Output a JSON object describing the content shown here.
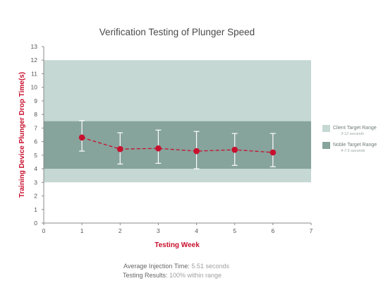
{
  "chart_data": {
    "type": "line",
    "title": "Verification Testing of Plunger Speed",
    "xlabel": "Testing Week",
    "ylabel": "Training Device Plunger Drop Time(s)",
    "xlim": [
      0,
      7
    ],
    "ylim": [
      0,
      13
    ],
    "x_ticks": [
      "0",
      "1",
      "2",
      "3",
      "4",
      "5",
      "6",
      "7"
    ],
    "y_ticks": [
      "0",
      "1",
      "2",
      "3",
      "4",
      "5",
      "6",
      "7",
      "8",
      "9",
      "10",
      "11",
      "12",
      "13"
    ],
    "grid": false,
    "legend_position": "right",
    "series": [
      {
        "x": [
          1,
          2,
          3,
          4,
          5,
          6
        ],
        "values": [
          6.3,
          5.45,
          5.5,
          5.3,
          5.4,
          5.2
        ],
        "error_low": [
          5.3,
          4.35,
          4.4,
          4.0,
          4.25,
          4.15
        ],
        "error_high": [
          7.55,
          6.65,
          6.85,
          6.75,
          6.6,
          6.6
        ],
        "color": "#c8102e"
      }
    ],
    "bands": [
      {
        "label": "Client Target Range",
        "sublabel": "3-12 seconds",
        "y_from": 3,
        "y_to": 12,
        "color": "#c5d8d3"
      },
      {
        "label": "Noble Target Range",
        "sublabel": "4-7.5 seconds",
        "y_from": 4,
        "y_to": 7.5,
        "color": "#86a39c"
      }
    ]
  },
  "summary": {
    "line1_label": "Average Injection Time:",
    "line1_value": "5.51 seconds",
    "line2_label": "Testing Results:",
    "line2_value": "100% within range"
  },
  "colors": {
    "axis": "#8a8a8a",
    "error_bar": "#ffffff",
    "accent": "#c8102e"
  }
}
